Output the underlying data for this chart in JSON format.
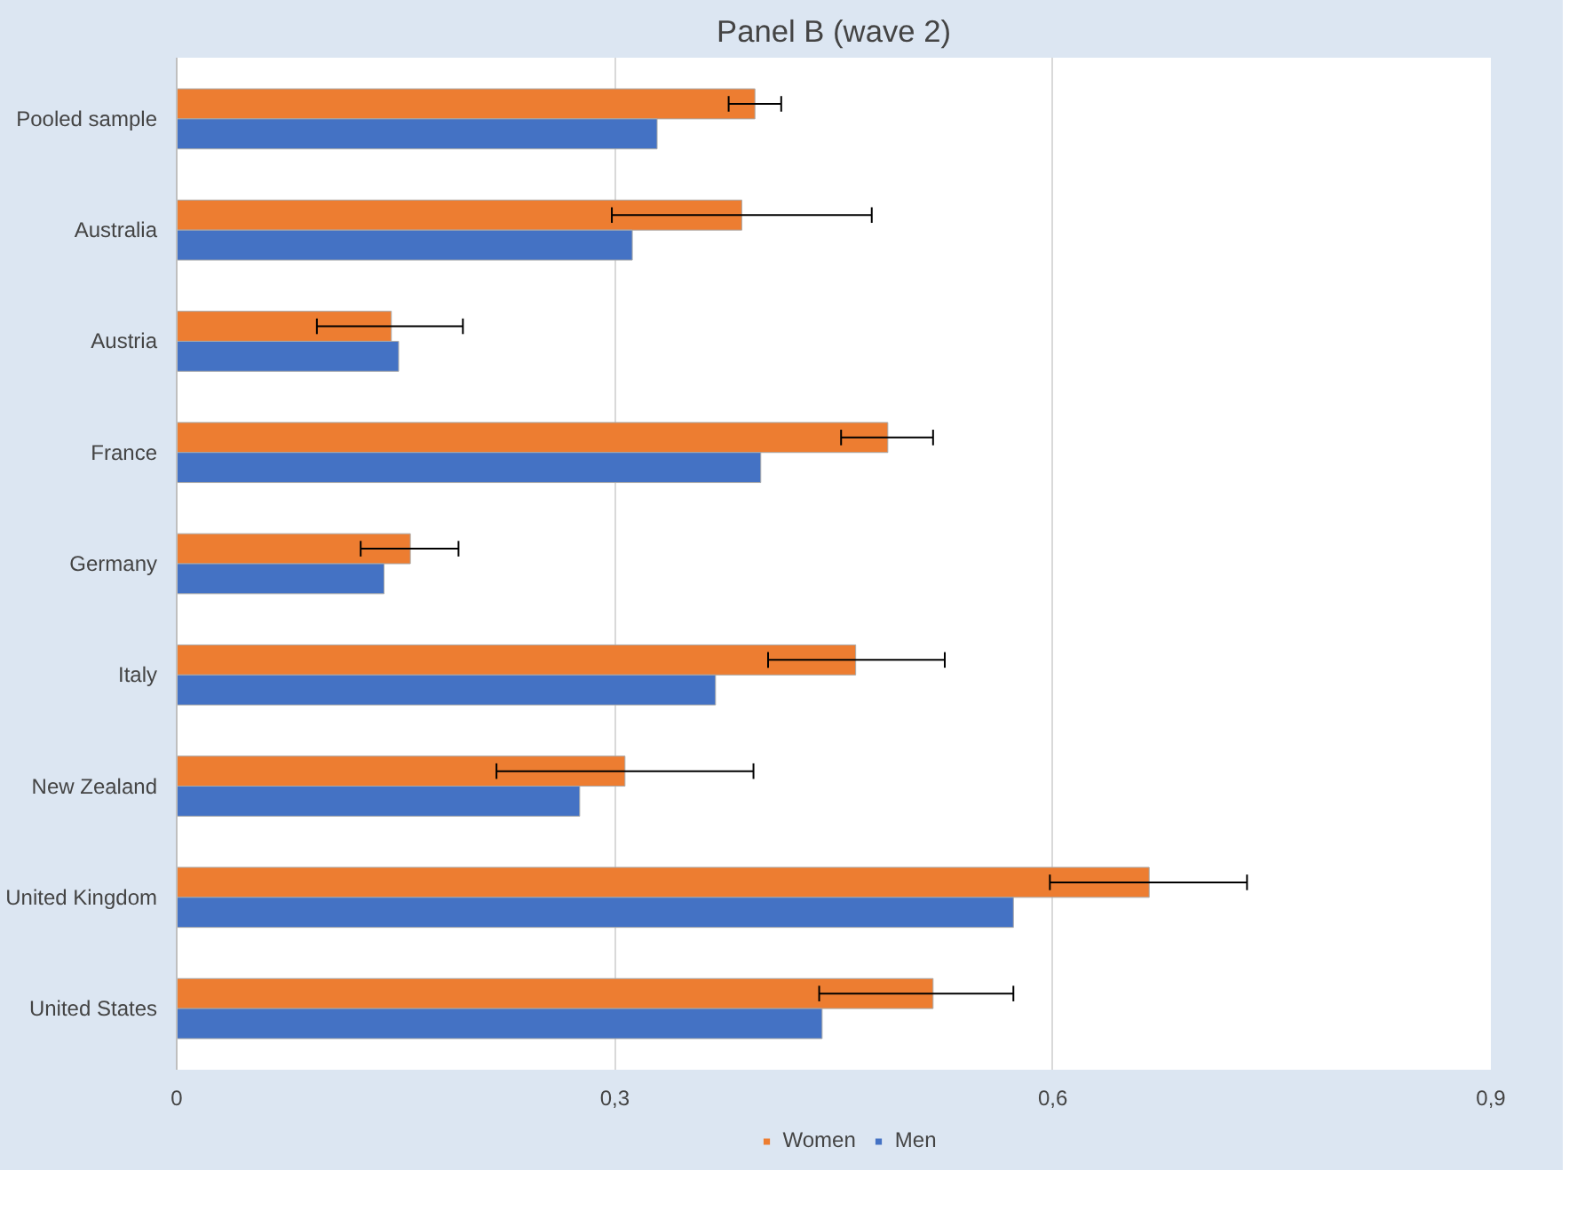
{
  "chart_data": {
    "type": "bar",
    "orientation": "horizontal",
    "title": "Panel B (wave 2)",
    "categories": [
      "Pooled sample",
      "Australia",
      "Austria",
      "France",
      "Germany",
      "Italy",
      "New Zealand",
      "United Kingdom",
      "United States"
    ],
    "series": [
      {
        "name": "Women",
        "color": "#ed7d31",
        "values": [
          0.396,
          0.387,
          0.147,
          0.487,
          0.16,
          0.465,
          0.307,
          0.666,
          0.518
        ],
        "errors": [
          [
            0.378,
            0.414
          ],
          [
            0.298,
            0.476
          ],
          [
            0.096,
            0.196
          ],
          [
            0.455,
            0.518
          ],
          [
            0.126,
            0.193
          ],
          [
            0.405,
            0.526
          ],
          [
            0.219,
            0.395
          ],
          [
            0.598,
            0.733
          ],
          [
            0.44,
            0.573
          ]
        ]
      },
      {
        "name": "Men",
        "color": "#4472c4",
        "values": [
          0.329,
          0.312,
          0.152,
          0.4,
          0.142,
          0.369,
          0.276,
          0.573,
          0.442
        ]
      }
    ],
    "xlim": [
      0,
      0.9
    ],
    "xticks": [
      {
        "value": 0,
        "label": "0"
      },
      {
        "value": 0.3,
        "label": "0,3"
      },
      {
        "value": 0.6,
        "label": "0,6"
      },
      {
        "value": 0.9,
        "label": "0,9"
      }
    ],
    "grid": "x",
    "legend": "bottom"
  }
}
